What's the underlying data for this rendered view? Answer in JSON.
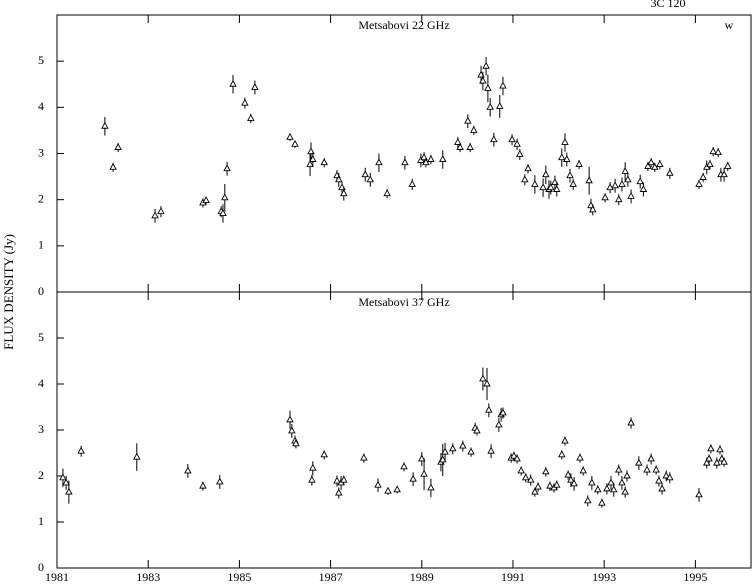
{
  "label": "3C 120",
  "ylabel": "FLUX DENSITY (Jy)",
  "chart_data": [
    {
      "type": "scatter",
      "title": "Metsabovi 22 GHz",
      "annotation": "w",
      "color": "#000000",
      "xlim": [
        1981,
        1996.22
      ],
      "xticks": [
        1981,
        1983,
        1985,
        1987,
        1989,
        1991,
        1993,
        1995
      ],
      "ylim": [
        0,
        6
      ],
      "yticks": [
        0,
        1,
        2,
        3,
        4,
        5
      ],
      "x": [
        1982.05,
        1982.23,
        1982.34,
        1983.15,
        1983.28,
        1984.2,
        1984.27,
        1984.6,
        1984.64,
        1984.68,
        1984.73,
        1984.86,
        1985.12,
        1985.25,
        1985.34,
        1986.11,
        1986.22,
        1986.55,
        1986.57,
        1986.61,
        1986.86,
        1987.14,
        1987.18,
        1987.25,
        1987.29,
        1987.76,
        1987.87,
        1988.06,
        1988.24,
        1988.63,
        1988.79,
        1988.98,
        1989.05,
        1989.09,
        1989.2,
        1989.46,
        1989.79,
        1989.84,
        1990.01,
        1990.06,
        1990.14,
        1990.3,
        1990.34,
        1990.41,
        1990.45,
        1990.5,
        1990.58,
        1990.71,
        1990.78,
        1990.98,
        1991.09,
        1991.15,
        1991.26,
        1991.33,
        1991.48,
        1991.66,
        1991.72,
        1991.79,
        1991.83,
        1991.92,
        1991.96,
        1992.07,
        1992.14,
        1992.18,
        1992.25,
        1992.32,
        1992.45,
        1992.67,
        1992.71,
        1992.75,
        1993.02,
        1993.13,
        1993.24,
        1993.32,
        1993.39,
        1993.46,
        1993.52,
        1993.59,
        1993.79,
        1993.86,
        1993.96,
        1994.03,
        1994.11,
        1994.22,
        1994.44,
        1995.08,
        1995.17,
        1995.25,
        1995.32,
        1995.39,
        1995.5,
        1995.56,
        1995.63,
        1995.71
      ],
      "values": [
        3.59,
        2.7,
        3.13,
        1.65,
        1.74,
        1.93,
        1.98,
        1.74,
        1.7,
        2.04,
        2.67,
        4.5,
        4.09,
        3.76,
        4.43,
        3.35,
        3.2,
        2.76,
        3.04,
        2.87,
        2.8,
        2.52,
        2.43,
        2.26,
        2.13,
        2.54,
        2.43,
        2.8,
        2.13,
        2.8,
        2.33,
        2.85,
        2.91,
        2.8,
        2.87,
        2.87,
        3.24,
        3.13,
        3.7,
        3.13,
        3.5,
        4.7,
        4.57,
        4.89,
        4.41,
        4.0,
        3.3,
        4.02,
        4.46,
        3.3,
        3.2,
        2.98,
        2.43,
        2.67,
        2.33,
        2.26,
        2.54,
        2.22,
        2.26,
        2.37,
        2.22,
        2.91,
        3.24,
        2.87,
        2.52,
        2.33,
        2.76,
        2.41,
        1.87,
        1.78,
        2.04,
        2.26,
        2.3,
        2.0,
        2.33,
        2.61,
        2.43,
        2.07,
        2.39,
        2.22,
        2.72,
        2.8,
        2.7,
        2.76,
        2.57,
        2.33,
        2.48,
        2.7,
        2.76,
        3.04,
        3.02,
        2.54,
        2.54,
        2.72
      ],
      "errors": [
        0.2,
        0.1,
        0.1,
        0.15,
        0.12,
        0.1,
        0.08,
        0.12,
        0.2,
        0.3,
        0.15,
        0.2,
        0.12,
        0.1,
        0.15,
        0.08,
        0.08,
        0.25,
        0.2,
        0.15,
        0.1,
        0.12,
        0.15,
        0.12,
        0.15,
        0.15,
        0.15,
        0.2,
        0.1,
        0.15,
        0.12,
        0.15,
        0.12,
        0.1,
        0.1,
        0.2,
        0.12,
        0.1,
        0.15,
        0.1,
        0.1,
        0.2,
        0.2,
        0.2,
        0.3,
        0.2,
        0.15,
        0.25,
        0.2,
        0.12,
        0.12,
        0.12,
        0.12,
        0.1,
        0.2,
        0.2,
        0.2,
        0.2,
        0.15,
        0.15,
        0.15,
        0.2,
        0.2,
        0.15,
        0.15,
        0.12,
        0.1,
        0.3,
        0.15,
        0.12,
        0.1,
        0.12,
        0.15,
        0.12,
        0.15,
        0.2,
        0.15,
        0.15,
        0.15,
        0.15,
        0.1,
        0.1,
        0.1,
        0.1,
        0.12,
        0.1,
        0.1,
        0.15,
        0.1,
        0.1,
        0.1,
        0.15,
        0.15,
        0.1
      ]
    },
    {
      "type": "scatter",
      "title": "Metsabovi 37 GHz",
      "color": "#000000",
      "xlim": [
        1981,
        1996.22
      ],
      "xticks": [
        1981,
        1983,
        1985,
        1987,
        1989,
        1991,
        1993,
        1995
      ],
      "ylim": [
        0,
        6
      ],
      "yticks": [
        0,
        1,
        2,
        3,
        4,
        5
      ],
      "x": [
        1981.13,
        1981.2,
        1981.26,
        1981.53,
        1982.75,
        1983.87,
        1984.2,
        1984.57,
        1986.11,
        1986.15,
        1986.22,
        1986.24,
        1986.59,
        1986.61,
        1986.86,
        1987.14,
        1987.18,
        1987.23,
        1987.29,
        1987.73,
        1988.04,
        1988.26,
        1988.46,
        1988.61,
        1988.81,
        1989.0,
        1989.05,
        1989.2,
        1989.42,
        1989.46,
        1989.51,
        1989.68,
        1989.9,
        1990.08,
        1990.17,
        1990.21,
        1990.34,
        1990.43,
        1990.47,
        1990.52,
        1990.69,
        1990.74,
        1990.78,
        1990.96,
        1991.02,
        1991.09,
        1991.18,
        1991.28,
        1991.39,
        1991.48,
        1991.55,
        1991.72,
        1991.81,
        1991.9,
        1991.96,
        1992.07,
        1992.14,
        1992.21,
        1992.27,
        1992.34,
        1992.47,
        1992.54,
        1992.64,
        1992.73,
        1992.86,
        1992.95,
        1993.06,
        1993.15,
        1993.21,
        1993.32,
        1993.39,
        1993.46,
        1993.5,
        1993.59,
        1993.76,
        1993.94,
        1994.03,
        1994.14,
        1994.2,
        1994.27,
        1994.36,
        1994.44,
        1995.08,
        1995.25,
        1995.3,
        1995.34,
        1995.47,
        1995.54,
        1995.58,
        1995.63
      ],
      "values": [
        1.96,
        1.85,
        1.65,
        2.54,
        2.41,
        2.11,
        1.78,
        1.87,
        3.22,
        2.98,
        2.76,
        2.7,
        1.91,
        2.17,
        2.46,
        1.89,
        1.63,
        1.85,
        1.91,
        2.39,
        1.8,
        1.67,
        1.7,
        2.2,
        1.93,
        2.37,
        2.04,
        1.74,
        2.3,
        2.35,
        2.52,
        2.59,
        2.65,
        2.52,
        3.04,
        2.98,
        4.11,
        4.0,
        3.43,
        2.54,
        3.11,
        3.33,
        3.37,
        2.39,
        2.43,
        2.37,
        2.11,
        1.96,
        1.91,
        1.65,
        1.76,
        2.09,
        1.78,
        1.74,
        1.8,
        2.46,
        2.76,
        2.02,
        1.91,
        1.83,
        2.39,
        2.11,
        1.46,
        1.85,
        1.7,
        1.41,
        1.72,
        1.85,
        1.7,
        2.13,
        1.85,
        1.65,
        2.0,
        3.15,
        2.28,
        2.13,
        2.37,
        2.13,
        1.89,
        1.72,
        2.0,
        1.96,
        1.59,
        2.28,
        2.37,
        2.59,
        2.28,
        2.57,
        2.37,
        2.3
      ],
      "errors": [
        0.2,
        0.15,
        0.25,
        0.12,
        0.3,
        0.15,
        0.1,
        0.15,
        0.2,
        0.15,
        0.12,
        0.1,
        0.12,
        0.15,
        0.1,
        0.12,
        0.12,
        0.15,
        0.1,
        0.1,
        0.15,
        0.08,
        0.08,
        0.1,
        0.15,
        0.15,
        0.35,
        0.2,
        0.2,
        0.35,
        0.2,
        0.12,
        0.12,
        0.1,
        0.12,
        0.1,
        0.25,
        0.35,
        0.15,
        0.15,
        0.15,
        0.15,
        0.12,
        0.1,
        0.1,
        0.1,
        0.1,
        0.1,
        0.12,
        0.1,
        0.1,
        0.1,
        0.1,
        0.1,
        0.1,
        0.1,
        0.1,
        0.1,
        0.15,
        0.15,
        0.1,
        0.1,
        0.12,
        0.15,
        0.1,
        0.1,
        0.12,
        0.15,
        0.15,
        0.12,
        0.15,
        0.12,
        0.12,
        0.12,
        0.15,
        0.12,
        0.12,
        0.1,
        0.12,
        0.12,
        0.12,
        0.12,
        0.15,
        0.12,
        0.1,
        0.1,
        0.12,
        0.1,
        0.1,
        0.1
      ]
    }
  ]
}
